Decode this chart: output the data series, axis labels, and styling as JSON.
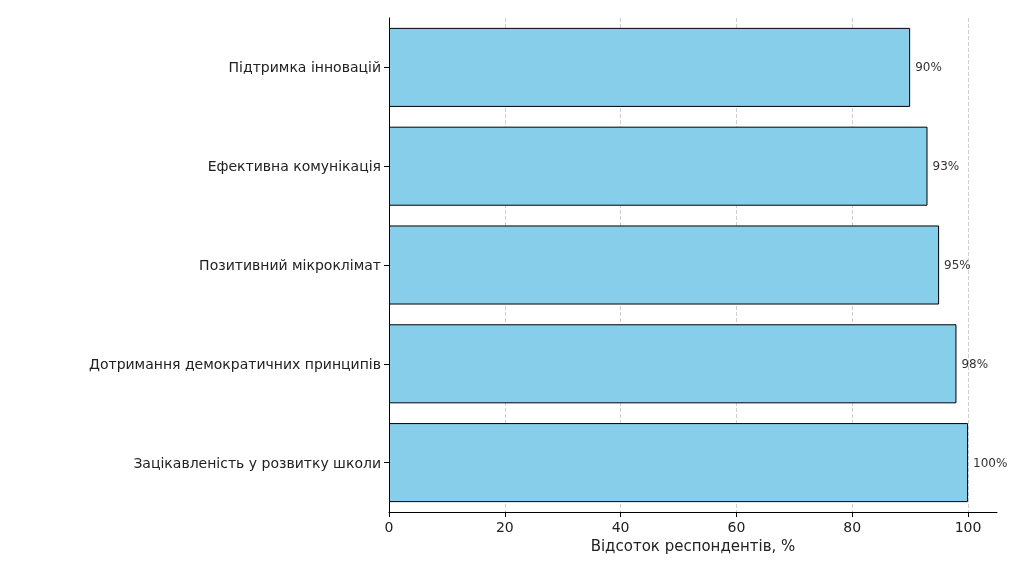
{
  "chart_data": {
    "type": "bar",
    "orientation": "horizontal",
    "xlabel": "Відсоток респондентів, %",
    "categories": [
      "Підтримка інновацій",
      "Ефективна комунікація",
      "Позитивний мікроклімат",
      "Дотримання демократичних принципів",
      "Зацікавленість у розвитку школи"
    ],
    "values": [
      90,
      93,
      95,
      98,
      100
    ],
    "color": "#87ceeb",
    "value_labels": [
      "90%",
      "93%",
      "95%",
      "98%",
      "100%"
    ],
    "xlim": [
      0,
      105
    ],
    "xticks": [
      0,
      20,
      40,
      60,
      80,
      100
    ],
    "grid": "x"
  }
}
